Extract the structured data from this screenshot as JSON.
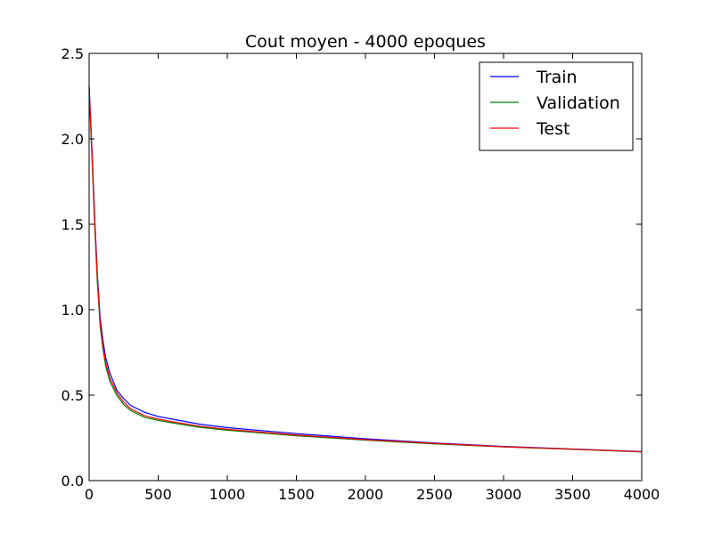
{
  "chart_data": {
    "type": "line",
    "title": "Cout moyen - 4000 epoques",
    "xlabel": "",
    "ylabel": "",
    "xlim": [
      0,
      4000
    ],
    "ylim": [
      0.0,
      2.5
    ],
    "x_ticks": [
      0,
      500,
      1000,
      1500,
      2000,
      2500,
      3000,
      3500,
      4000
    ],
    "y_ticks": [
      0.0,
      0.5,
      1.0,
      1.5,
      2.0,
      2.5
    ],
    "y_tick_labels": [
      "0.0",
      "0.5",
      "1.0",
      "1.5",
      "2.0",
      "2.5"
    ],
    "grid": false,
    "legend_position": "top-right",
    "x": [
      0,
      20,
      40,
      60,
      80,
      100,
      120,
      150,
      200,
      250,
      300,
      400,
      500,
      600,
      800,
      1000,
      1500,
      2000,
      2500,
      3000,
      3500,
      4000
    ],
    "series": [
      {
        "name": "Train",
        "color": "#0000ff",
        "values": [
          2.31,
          1.95,
          1.55,
          1.2,
          0.95,
          0.82,
          0.72,
          0.63,
          0.53,
          0.48,
          0.44,
          0.4,
          0.375,
          0.36,
          0.33,
          0.31,
          0.275,
          0.245,
          0.22,
          0.2,
          0.185,
          0.17
        ]
      },
      {
        "name": "Validation",
        "color": "#008000",
        "values": [
          2.28,
          1.9,
          1.5,
          1.15,
          0.9,
          0.77,
          0.67,
          0.58,
          0.5,
          0.445,
          0.41,
          0.37,
          0.352,
          0.338,
          0.312,
          0.295,
          0.262,
          0.237,
          0.215,
          0.197,
          0.183,
          0.168
        ]
      },
      {
        "name": "Test",
        "color": "#ff0000",
        "values": [
          2.3,
          1.93,
          1.53,
          1.18,
          0.92,
          0.79,
          0.69,
          0.6,
          0.515,
          0.46,
          0.42,
          0.38,
          0.36,
          0.345,
          0.318,
          0.3,
          0.267,
          0.24,
          0.218,
          0.198,
          0.184,
          0.169
        ]
      }
    ]
  }
}
